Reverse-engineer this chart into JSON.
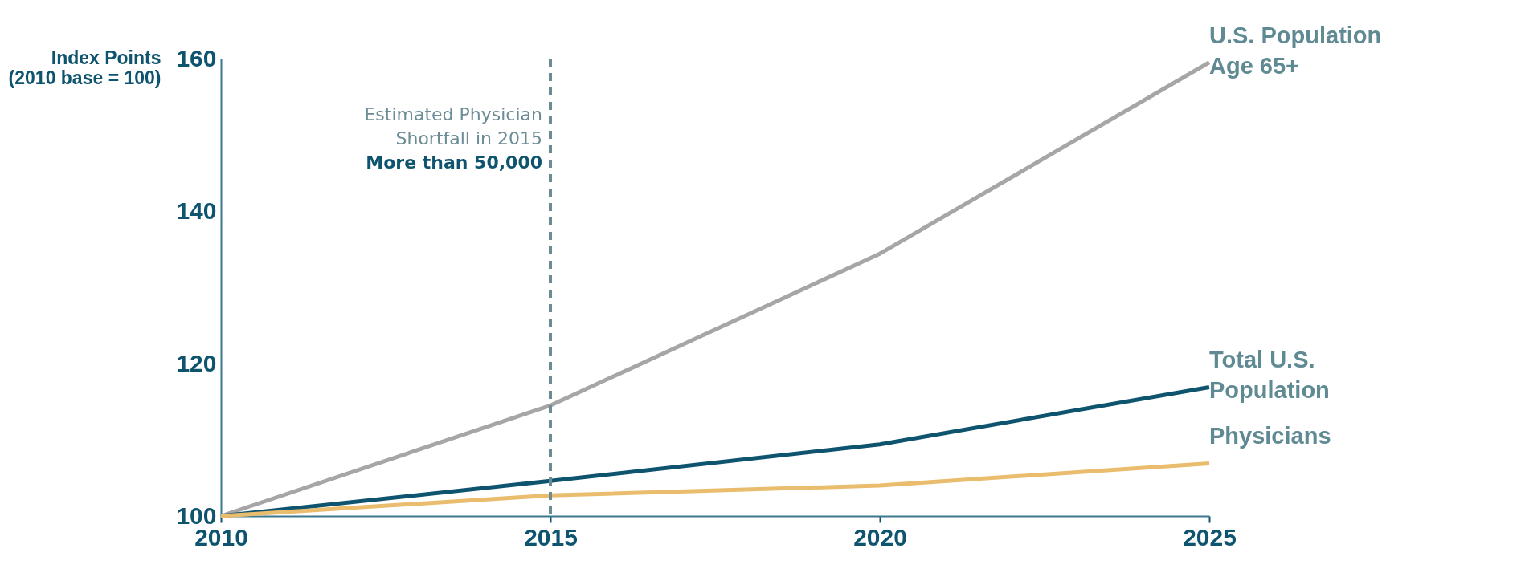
{
  "chart_data": {
    "type": "line",
    "ylabel": "Index Points (2010 base = 100)",
    "x": [
      2010,
      2015,
      2020,
      2025
    ],
    "xlim": [
      2010,
      2025
    ],
    "xticks": [
      2010,
      2015,
      2020,
      2025
    ],
    "ylim": [
      100,
      160
    ],
    "yticks": [
      100,
      120,
      140,
      160
    ],
    "grid": false,
    "legend": false,
    "marker": "none",
    "line_style": "solid",
    "series": [
      {
        "name": "U.S. Population Age 65+",
        "color": "#a6a6a6",
        "values": [
          100,
          114.5,
          134.4,
          159.5
        ]
      },
      {
        "name": "Total U.S. Population",
        "color": "#0f546f",
        "values": [
          100,
          104.6,
          109.4,
          116.9
        ]
      },
      {
        "name": "Physicians",
        "color": "#e9bd6d",
        "values": [
          100,
          102.7,
          104,
          106.9
        ]
      }
    ],
    "ref_lines": [
      {
        "axis": "x",
        "value": 2015,
        "label": "Estimated Physician Shortfall in 2015",
        "color": "#6b8c95",
        "line_style": "dashed"
      }
    ],
    "annotations": [
      "More than 50,000"
    ]
  }
}
